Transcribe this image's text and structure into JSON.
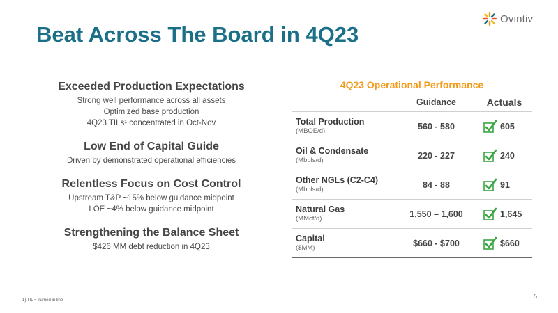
{
  "brand": {
    "name": "Ovintiv",
    "accent": "#1b6f87",
    "orange": "#f39a1b",
    "check_green": "#3aa542",
    "logo_icon": "burst-icon"
  },
  "title": "Beat Across The Board in 4Q23",
  "highlights": [
    {
      "heading": "Exceeded Production Expectations",
      "lines": [
        "Strong well performance across all assets",
        "Optimized base production",
        "4Q23 TILs¹ concentrated in Oct-Nov"
      ]
    },
    {
      "heading": "Low End of Capital Guide",
      "lines": [
        "Driven by demonstrated operational efficiencies"
      ]
    },
    {
      "heading": "Relentless Focus on Cost Control",
      "lines": [
        "Upstream T&P ~15% below guidance midpoint",
        "LOE ~4% below guidance midpoint"
      ]
    },
    {
      "heading": "Strengthening the Balance Sheet",
      "lines": [
        "$426 MM debt reduction in 4Q23"
      ]
    }
  ],
  "table": {
    "title": "4Q23 Operational Performance",
    "columns": {
      "guidance": "Guidance",
      "actuals": "Actuals"
    },
    "rows": [
      {
        "name": "Total Production",
        "unit": "(MBOE/d)",
        "guidance": "560 - 580",
        "actual": "605"
      },
      {
        "name": "Oil & Condensate",
        "unit": "(Mbbls/d)",
        "guidance": "220 - 227",
        "actual": "240"
      },
      {
        "name": "Other NGLs (C2-C4)",
        "unit": "(Mbbls/d)",
        "guidance": "84 - 88",
        "actual": "91"
      },
      {
        "name": "Natural Gas",
        "unit": "(MMcf/d)",
        "guidance": "1,550 – 1,600",
        "actual": "1,645"
      },
      {
        "name": "Capital",
        "unit": "($MM)",
        "guidance": "$660 - $700",
        "actual": "$660"
      }
    ]
  },
  "footnote": "1) TIL = Turned in line",
  "page_number": "5"
}
